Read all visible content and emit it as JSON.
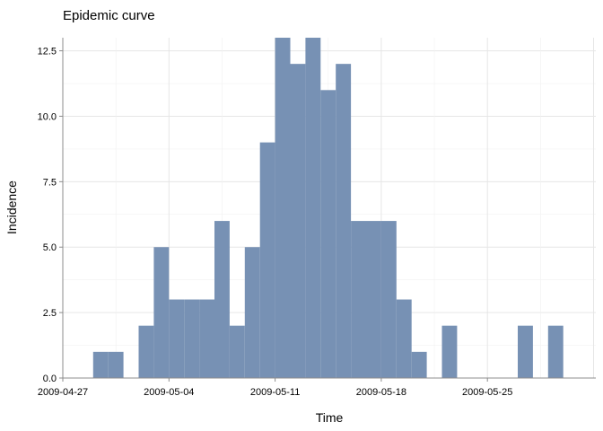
{
  "chart_data": {
    "type": "bar",
    "title": "Epidemic curve",
    "xlabel": "Time",
    "ylabel": "Incidence",
    "bar_color": "#7791b4",
    "bin_width_days": 1,
    "bins": [
      {
        "start": "2009-04-29",
        "value": 1
      },
      {
        "start": "2009-04-30",
        "value": 1
      },
      {
        "start": "2009-05-02",
        "value": 2
      },
      {
        "start": "2009-05-03",
        "value": 5
      },
      {
        "start": "2009-05-04",
        "value": 3
      },
      {
        "start": "2009-05-05",
        "value": 3
      },
      {
        "start": "2009-05-06",
        "value": 3
      },
      {
        "start": "2009-05-07",
        "value": 6
      },
      {
        "start": "2009-05-08",
        "value": 2
      },
      {
        "start": "2009-05-09",
        "value": 5
      },
      {
        "start": "2009-05-10",
        "value": 9
      },
      {
        "start": "2009-05-11",
        "value": 13
      },
      {
        "start": "2009-05-12",
        "value": 12
      },
      {
        "start": "2009-05-13",
        "value": 13
      },
      {
        "start": "2009-05-14",
        "value": 11
      },
      {
        "start": "2009-05-15",
        "value": 12
      },
      {
        "start": "2009-05-16",
        "value": 6
      },
      {
        "start": "2009-05-17",
        "value": 6
      },
      {
        "start": "2009-05-18",
        "value": 6
      },
      {
        "start": "2009-05-19",
        "value": 3
      },
      {
        "start": "2009-05-20",
        "value": 1
      },
      {
        "start": "2009-05-22",
        "value": 2
      },
      {
        "start": "2009-05-27",
        "value": 2
      },
      {
        "start": "2009-05-29",
        "value": 2
      }
    ],
    "x_ticks": [
      "2009-04-27",
      "2009-05-04",
      "2009-05-11",
      "2009-05-18",
      "2009-05-25"
    ],
    "y_ticks": [
      "0.0",
      "2.5",
      "5.0",
      "7.5",
      "10.0",
      "12.5"
    ],
    "xlim": [
      "2009-04-27",
      "2009-06-01"
    ],
    "ylim": [
      0,
      13
    ],
    "grid": true,
    "legend": "none"
  }
}
